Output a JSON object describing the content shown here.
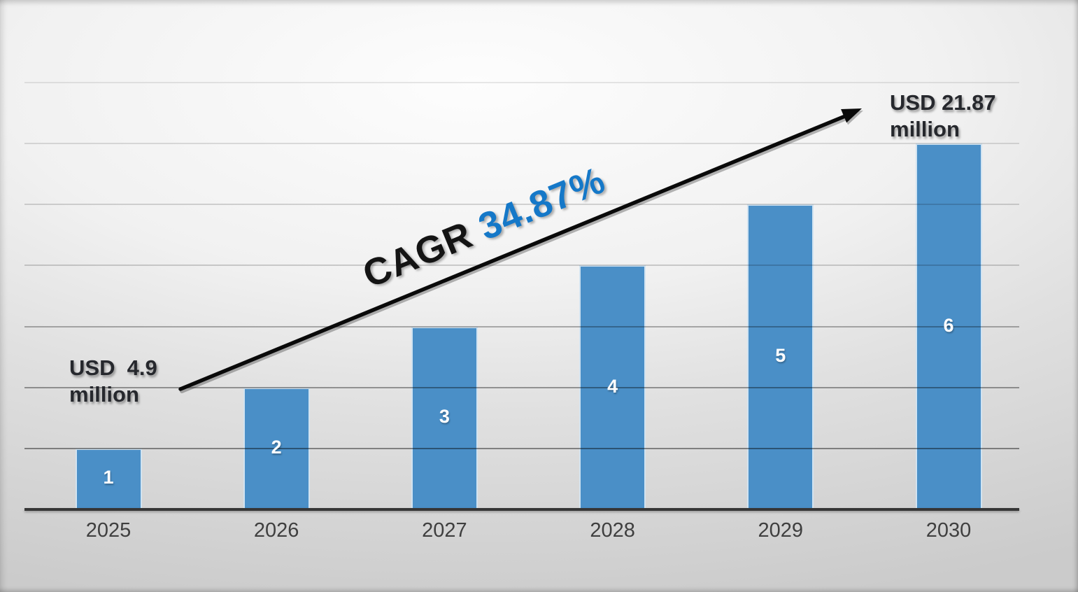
{
  "chart_data": {
    "type": "bar",
    "title": "",
    "categories": [
      "2025",
      "2026",
      "2027",
      "2028",
      "2029",
      "2030"
    ],
    "values": [
      1,
      2,
      3,
      4,
      5,
      6
    ],
    "bar_labels": [
      "1",
      "2",
      "3",
      "4",
      "5",
      "6"
    ],
    "xlabel": "",
    "ylabel": "",
    "ylim": [
      0,
      7
    ],
    "grid": "horizontal gridlines, 7 above baseline",
    "legend_position": "none",
    "annotations": {
      "start_label": "USD  4.9\nmillion",
      "end_label": "USD 21.87\nmillion",
      "cagr_prefix": "CAGR ",
      "cagr_value": "34.87%",
      "trend_arrow": "rising from 2025 gridline to upper right"
    }
  },
  "colors": {
    "bar_fill": "#4A8FC7",
    "cagr_value_text": "#1578C8",
    "annotation_text": "#26282D",
    "tick_label_text": "#3F3F3F",
    "bar_label_text": "#FFFFFF",
    "axis_line": "#363636",
    "arrow": "#0A0A0A"
  }
}
